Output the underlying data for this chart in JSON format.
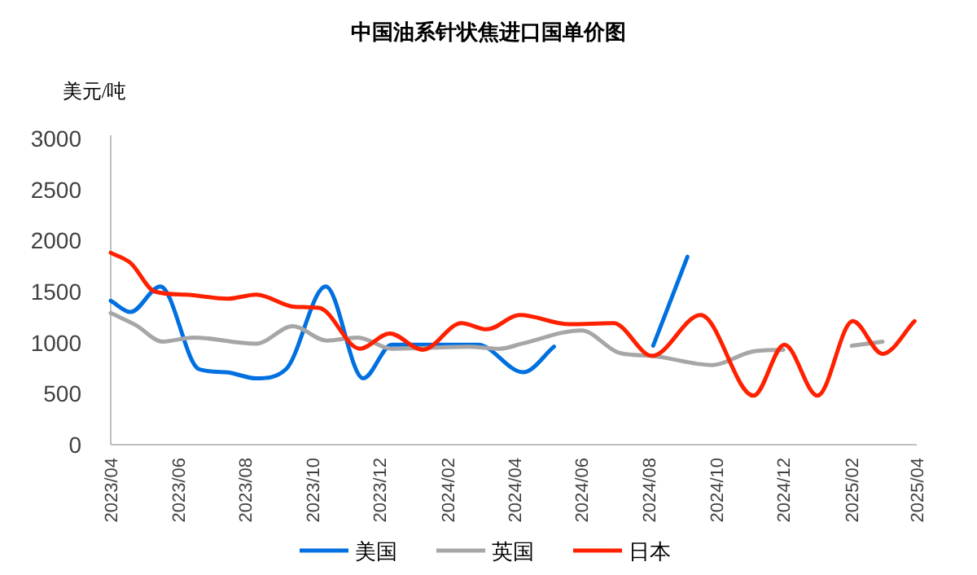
{
  "chart_data": {
    "type": "line",
    "title": "中国油系针状焦进口国单价图",
    "ylabel": "美元/吨",
    "ylim": [
      0,
      3000
    ],
    "yticks": [
      0,
      500,
      1000,
      1500,
      2000,
      2500,
      3000
    ],
    "xlim": [
      "2023-04-01",
      "2025-04-01"
    ],
    "xticks": [
      {
        "value": "2023-04",
        "label": "2023/04"
      },
      {
        "value": "2023-06",
        "label": "2023/06"
      },
      {
        "value": "2023-08",
        "label": "2023/08"
      },
      {
        "value": "2023-10",
        "label": "2023/10"
      },
      {
        "value": "2023-12",
        "label": "2023/12"
      },
      {
        "value": "2024-02",
        "label": "2024/02"
      },
      {
        "value": "2024-04",
        "label": "2024/04"
      },
      {
        "value": "2024-06",
        "label": "2024/06"
      },
      {
        "value": "2024-08",
        "label": "2024/08"
      },
      {
        "value": "2024-10",
        "label": "2024/10"
      },
      {
        "value": "2024-12",
        "label": "2024/12"
      },
      {
        "value": "2025-02",
        "label": "2025/02"
      },
      {
        "value": "2025-04",
        "label": "2025/04"
      }
    ],
    "grid": false,
    "legend": "bottom",
    "marker": "none",
    "line_style": "solid",
    "series": [
      {
        "name": "美国",
        "color": "#0070e0",
        "x": [
          "2023-04-01",
          "2023-04-19",
          "2023-05-16",
          "2023-06-20",
          "2023-07-14",
          "2023-08-11",
          "2023-09-07",
          "2023-10-13",
          "2023-11-16",
          "2023-12-12",
          "2024-01-11",
          "2024-02-28",
          "2024-04-09",
          "2024-05-07",
          "2024-06-20",
          "2024-08-05",
          "2024-09-05"
        ],
        "values": [
          1410,
          1300,
          1550,
          740,
          710,
          650,
          740,
          1550,
          650,
          980,
          980,
          980,
          710,
          960,
          null,
          970,
          1840
        ]
      },
      {
        "name": "英国",
        "color": "#a6a6a6",
        "x": [
          "2023-04-01",
          "2023-04-24",
          "2023-05-18",
          "2023-06-15",
          "2023-08-11",
          "2023-09-13",
          "2023-10-14",
          "2023-11-11",
          "2023-12-12",
          "2024-02-20",
          "2024-03-19",
          "2024-04-08",
          "2024-06-01",
          "2024-07-05",
          "2024-08-04",
          "2024-09-28",
          "2024-11-02",
          "2024-12-01",
          "2025-01-01",
          "2025-02-01",
          "2025-03-01"
        ],
        "values": [
          1290,
          1170,
          1010,
          1050,
          990,
          1160,
          1020,
          1050,
          940,
          960,
          940,
          990,
          1120,
          900,
          870,
          780,
          910,
          930,
          null,
          970,
          1010
        ]
      },
      {
        "name": "日本",
        "color": "#ff2000",
        "x": [
          "2023-04-01",
          "2023-04-19",
          "2023-05-11",
          "2023-06-08",
          "2023-07-16",
          "2023-08-11",
          "2023-09-15",
          "2023-10-07",
          "2023-11-13",
          "2023-12-10",
          "2024-01-09",
          "2024-02-13",
          "2024-03-07",
          "2024-04-06",
          "2024-05-21",
          "2024-06-30",
          "2024-08-04",
          "2024-09-17",
          "2024-11-04",
          "2024-12-02",
          "2025-01-01",
          "2025-02-02",
          "2025-03-01",
          "2025-03-30"
        ],
        "values": [
          1880,
          1780,
          1500,
          1470,
          1430,
          1470,
          1350,
          1340,
          940,
          1090,
          930,
          1190,
          1130,
          1270,
          1180,
          1190,
          870,
          1270,
          480,
          980,
          480,
          1210,
          890,
          1210
        ]
      }
    ]
  }
}
